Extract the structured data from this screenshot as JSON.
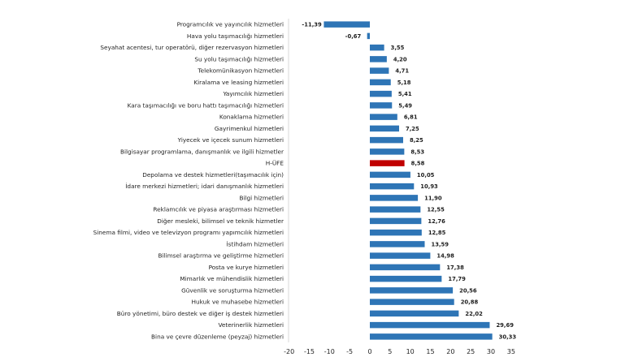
{
  "chart_data": {
    "type": "bar",
    "orientation": "horizontal",
    "categories": [
      "Programcılık ve yayıncılık hizmetleri",
      "Hava yolu taşımacılığı hizmetleri",
      "Seyahat acentesi, tur operatörü, diğer rezervasyon hizmetleri",
      "Su yolu taşımacılığı hizmetleri",
      "Telekomünikasyon hizmetleri",
      "Kiralama ve leasing hizmetleri",
      "Yayımcılık hizmetleri",
      "Kara taşımacılığı ve boru hattı taşımacılığı hizmetleri",
      "Konaklama hizmetleri",
      "Gayrimenkul hizmetleri",
      "Yiyecek ve içecek sunum hizmetleri",
      "Bilgisayar programlama, danışmanlık ve ilgili hizmetler",
      "H-ÜFE",
      "Depolama ve destek hizmetleri(taşımacılık için)",
      "İdare merkezi hizmetleri; idari danışmanlık hizmetleri",
      "Bilgi hizmetleri",
      "Reklamcılık ve piyasa araştırması hizmetleri",
      "Diğer mesleki, bilimsel ve teknik hizmetler",
      "Sinema filmi, video ve televizyon programı yapımcılık hizmetleri",
      "İstihdam hizmetleri",
      "Bilimsel araştırma ve geliştirme hizmetleri",
      "Posta ve kurye hizmetleri",
      "Mimarlık ve mühendislik hizmetleri",
      "Güvenlik ve soruşturma hizmetleri",
      "Hukuk ve muhasebe hizmetleri",
      "Büro yönetimi, büro destek ve diğer iş destek hizmetleri",
      "Veterinerlik hizmetleri",
      "Bina ve çevre düzenleme (peyzaj) hizmetleri"
    ],
    "values": [
      -11.39,
      -0.67,
      3.55,
      4.2,
      4.71,
      5.18,
      5.41,
      5.49,
      6.81,
      7.25,
      8.25,
      8.53,
      8.58,
      10.05,
      10.93,
      11.9,
      12.55,
      12.76,
      12.85,
      13.59,
      14.98,
      17.38,
      17.79,
      20.56,
      20.88,
      22.02,
      29.69,
      30.33
    ],
    "value_labels": [
      "-11,39",
      "-0,67",
      "3,55",
      "4,20",
      "4,71",
      "5,18",
      "5,41",
      "5,49",
      "6,81",
      "7,25",
      "8,25",
      "8,53",
      "8,58",
      "10,05",
      "10,93",
      "11,90",
      "12,55",
      "12,76",
      "12,85",
      "13,59",
      "14,98",
      "17,38",
      "17,79",
      "20,56",
      "20,88",
      "22,02",
      "29,69",
      "30,33"
    ],
    "highlight_index": 12,
    "xlim": [
      -20,
      35
    ],
    "xticks": [
      -20,
      -15,
      -10,
      -5,
      0,
      5,
      10,
      15,
      20,
      25,
      30,
      35
    ],
    "colors": {
      "bar": "#2e75b6",
      "highlight": "#c00000",
      "axis": "#d9d9d9"
    },
    "title": "",
    "xlabel": "",
    "ylabel": "",
    "grid": false,
    "legend": "none"
  }
}
